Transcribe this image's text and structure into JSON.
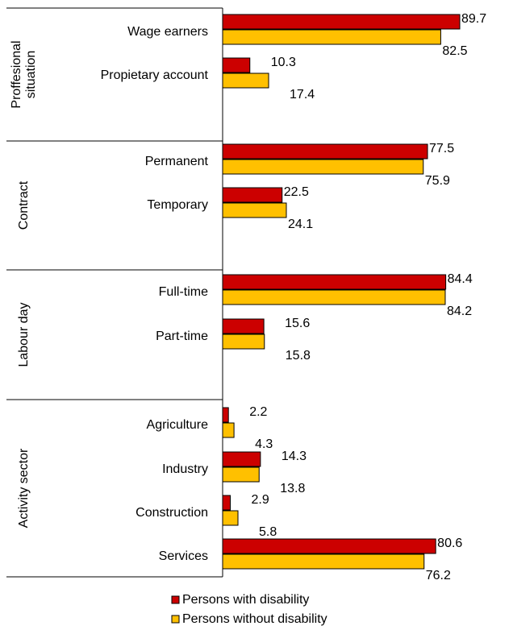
{
  "chart_data": {
    "type": "grouped-hbar",
    "groups": [
      {
        "name": "Proffesional situation",
        "categories": [
          "Wage earners",
          "Propietary account"
        ]
      },
      {
        "name": "Contract",
        "categories": [
          "Permanent",
          "Temporary"
        ]
      },
      {
        "name": "Labour day",
        "categories": [
          "Full-time",
          "Part-time"
        ]
      },
      {
        "name": "Activity sector",
        "categories": [
          "Agriculture",
          "Industry",
          "Construction",
          "Services"
        ]
      }
    ],
    "series": [
      {
        "name": "Persons with disability",
        "color": "#cc0000",
        "values": [
          89.7,
          10.3,
          77.5,
          22.5,
          84.4,
          15.6,
          2.2,
          14.3,
          2.9,
          80.6
        ]
      },
      {
        "name": "Persons without disability",
        "color": "#ffc000",
        "values": [
          82.5,
          17.4,
          75.9,
          24.1,
          84.2,
          15.8,
          4.3,
          13.8,
          5.8,
          76.2
        ]
      }
    ]
  }
}
